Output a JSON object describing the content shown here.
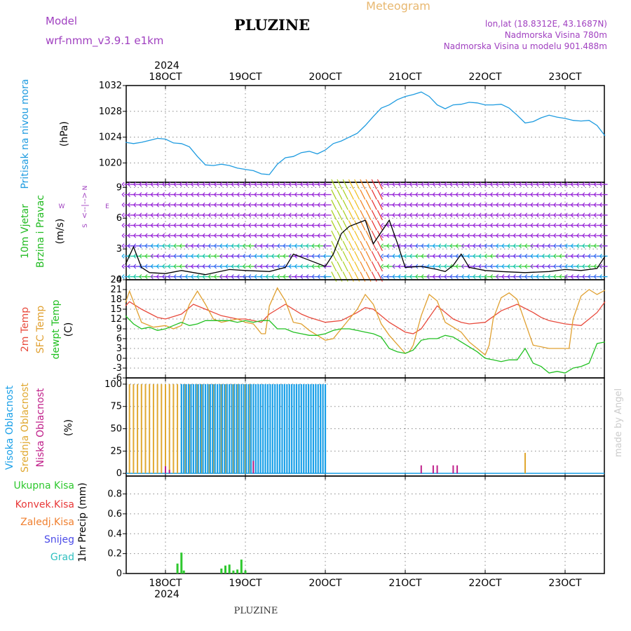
{
  "header": {
    "model_label": "Model",
    "model_name": "wrf-nmm_v3.9.1 e1km",
    "station": "PLUZINE",
    "product": "Meteogram",
    "lonlat": "lon,lat (18.8312E, 43.1687N)",
    "elevation": "Nadmorska Visina 780m",
    "model_elevation": "Nadmorska Visina u modelu 901.488m",
    "watermark": "made by Angel",
    "footer": "PLUZINE"
  },
  "colors": {
    "pressure": "#1e9be0",
    "temp2m": "#e84a3c",
    "sfc": "#e0a030",
    "dew": "#22c022",
    "high": "#1aa0e8",
    "mid": "#e0a830",
    "low": "#c0208a",
    "total": "#2ec82e",
    "conv": "#e83838",
    "frozen": "#f08030",
    "snow": "#4a4ae8",
    "graupel": "#30c0c0",
    "wind_label": "#22bb22",
    "model": "#a040c0",
    "header_gold": "#e8b870",
    "watermark": "#cccccc"
  },
  "chart_data": [
    {
      "type": "line",
      "name": "pressure",
      "ylabel": [
        "Pritisak na nivou mora",
        "(hPa)"
      ],
      "yticks": [
        1020,
        1024,
        1028,
        1032
      ],
      "ylim": [
        1017,
        1032
      ],
      "year": "2024",
      "date_ticks": [
        "18OCT",
        "19OCT",
        "20OCT",
        "21OCT",
        "22OCT",
        "23OCT"
      ],
      "xlim": [
        -0.5,
        5.5
      ],
      "grid": true,
      "series": [
        {
          "x": [
            -0.5,
            -0.4,
            -0.3,
            -0.2,
            -0.1,
            0,
            0.1,
            0.2,
            0.3,
            0.4,
            0.5,
            0.6,
            0.7,
            0.8,
            0.9,
            1,
            1.1,
            1.2,
            1.3,
            1.4,
            1.5,
            1.6,
            1.7,
            1.8,
            1.9,
            2,
            2.1,
            2.2,
            2.3,
            2.4,
            2.5,
            2.6,
            2.7,
            2.8,
            2.9,
            3,
            3.1,
            3.2,
            3.3,
            3.4,
            3.5,
            3.6,
            3.7,
            3.8,
            3.9,
            4,
            4.1,
            4.2,
            4.3,
            4.4,
            4.5,
            4.6,
            4.7,
            4.8,
            4.9,
            5,
            5.1,
            5.2,
            5.3,
            5.4,
            5.5
          ],
          "y": [
            1023.2,
            1023.0,
            1023.2,
            1023.5,
            1023.8,
            1023.7,
            1023.1,
            1023.0,
            1022.5,
            1021.0,
            1019.7,
            1019.6,
            1019.8,
            1019.6,
            1019.2,
            1019.0,
            1018.8,
            1018.3,
            1018.2,
            1019.8,
            1020.8,
            1021.0,
            1021.6,
            1021.8,
            1021.4,
            1022.0,
            1023.0,
            1023.4,
            1024.0,
            1024.6,
            1025.8,
            1027.2,
            1028.5,
            1029.0,
            1029.8,
            1030.3,
            1030.6,
            1031.0,
            1030.3,
            1029.0,
            1028.4,
            1029.0,
            1029.1,
            1029.4,
            1029.3,
            1029.0,
            1029.0,
            1029.1,
            1028.5,
            1027.4,
            1026.2,
            1026.4,
            1027.0,
            1027.4,
            1027.1,
            1026.9,
            1026.6,
            1026.5,
            1026.6,
            1025.8,
            1024.2
          ]
        }
      ]
    },
    {
      "type": "line",
      "name": "wind",
      "ylabel": [
        "10m Vjetar",
        "Brzina i Pravac",
        "(m/s)"
      ],
      "compass": {
        "n": "N",
        "e": "E",
        "w": "W",
        "s": "S",
        "arrows": "<--|-->"
      },
      "yticks": [
        0,
        3,
        6,
        9
      ],
      "ylim": [
        0,
        9.5
      ],
      "xlim": [
        -0.5,
        5.5
      ],
      "grid": true,
      "series": [
        {
          "x": [
            -0.5,
            -0.4,
            -0.3,
            -0.2,
            0,
            0.2,
            0.5,
            0.8,
            1,
            1.3,
            1.5,
            1.6,
            1.8,
            2,
            2.1,
            2.2,
            2.3,
            2.4,
            2.5,
            2.6,
            2.8,
            2.9,
            3,
            3.2,
            3.4,
            3.5,
            3.6,
            3.7,
            3.8,
            4,
            4.2,
            4.5,
            4.8,
            5,
            5.2,
            5.4,
            5.5
          ],
          "y": [
            1.5,
            3.2,
            1.2,
            0.7,
            0.6,
            0.9,
            0.5,
            1.0,
            0.9,
            0.8,
            1.2,
            2.5,
            1.9,
            1.3,
            2.5,
            4.5,
            5.2,
            5.5,
            5.8,
            3.5,
            5.8,
            3.6,
            1.2,
            1.3,
            1.0,
            0.8,
            1.4,
            2.5,
            1.2,
            0.9,
            0.8,
            0.7,
            0.8,
            1.0,
            0.9,
            1.1,
            2.3
          ]
        }
      ]
    },
    {
      "type": "line",
      "name": "temperature",
      "ylabel": [
        "2m Temp",
        "SFC Temp",
        "dewpt Temp",
        "(C)"
      ],
      "yticks": [
        -6,
        -3,
        0,
        3,
        6,
        9,
        12,
        15,
        18,
        21,
        24
      ],
      "ylim": [
        -6,
        24
      ],
      "xlim": [
        -0.5,
        5.5
      ],
      "grid": true,
      "series": [
        {
          "name": "2m Temp",
          "x": [
            -0.5,
            -0.45,
            -0.3,
            -0.1,
            0,
            0.2,
            0.35,
            0.5,
            0.7,
            0.9,
            1,
            1.1,
            1.2,
            1.3,
            1.5,
            1.7,
            1.8,
            2,
            2.2,
            2.4,
            2.5,
            2.6,
            2.8,
            3,
            3.1,
            3.2,
            3.4,
            3.6,
            3.7,
            3.8,
            4,
            4.2,
            4.4,
            4.6,
            4.7,
            4.8,
            5,
            5.2,
            5.4,
            5.5
          ],
          "y": [
            16,
            17.3,
            15,
            12.5,
            12,
            13.5,
            16.5,
            15,
            13,
            12,
            12,
            11.5,
            11,
            13.5,
            16.5,
            13.5,
            12.5,
            11,
            11.5,
            14,
            15.5,
            15,
            11,
            8,
            7.5,
            9,
            16,
            12,
            11,
            10.5,
            11,
            14.5,
            16.5,
            14,
            12.5,
            11.5,
            10.5,
            10,
            14,
            17.3
          ]
        },
        {
          "name": "SFC Temp",
          "x": [
            -0.5,
            -0.45,
            -0.3,
            -0.15,
            0,
            0.1,
            0.2,
            0.3,
            0.4,
            0.5,
            0.6,
            0.7,
            0.8,
            0.9,
            1,
            1.1,
            1.2,
            1.25,
            1.3,
            1.4,
            1.5,
            1.6,
            1.7,
            1.8,
            1.9,
            2,
            2.1,
            2.2,
            2.4,
            2.5,
            2.6,
            2.7,
            2.8,
            3,
            3.05,
            3.1,
            3.2,
            3.3,
            3.4,
            3.5,
            3.6,
            3.7,
            3.8,
            4,
            4.05,
            4.1,
            4.2,
            4.3,
            4.4,
            4.5,
            4.6,
            4.8,
            5,
            5.05,
            5.1,
            5.2,
            5.3,
            5.4,
            5.5
          ],
          "y": [
            17,
            20.5,
            11,
            9.5,
            10,
            9,
            10,
            16.5,
            20.5,
            16.5,
            12,
            11,
            11.5,
            12,
            11,
            10.5,
            7.5,
            7.5,
            16,
            21.5,
            17.5,
            11,
            10.5,
            8.5,
            7,
            5.5,
            6,
            9,
            15,
            19.5,
            16.5,
            10.5,
            7,
            1.5,
            2,
            4,
            13,
            19.5,
            17.5,
            11,
            9.5,
            8,
            5,
            1,
            4,
            12,
            18.5,
            20,
            18,
            11,
            4,
            3,
            3,
            3,
            12,
            19,
            21,
            19.5,
            20.8
          ]
        },
        {
          "name": "dewpt Temp",
          "x": [
            -0.5,
            -0.4,
            -0.3,
            -0.2,
            -0.1,
            0,
            0.1,
            0.2,
            0.3,
            0.4,
            0.5,
            0.6,
            0.7,
            0.8,
            0.9,
            1,
            1.1,
            1.2,
            1.3,
            1.4,
            1.5,
            1.6,
            1.7,
            1.8,
            1.9,
            2,
            2.1,
            2.2,
            2.3,
            2.4,
            2.5,
            2.6,
            2.7,
            2.8,
            2.9,
            3,
            3.1,
            3.2,
            3.3,
            3.4,
            3.5,
            3.6,
            3.7,
            3.8,
            3.9,
            4,
            4.1,
            4.2,
            4.3,
            4.4,
            4.5,
            4.6,
            4.7,
            4.8,
            4.9,
            5,
            5.1,
            5.2,
            5.3,
            5.4,
            5.5
          ],
          "y": [
            13,
            10.5,
            9,
            9.5,
            8.5,
            9,
            10,
            11,
            10,
            10.5,
            11.5,
            11.5,
            11.5,
            11.5,
            11,
            11.5,
            11,
            11.5,
            11.5,
            9,
            9,
            8,
            7.5,
            7,
            7,
            7.5,
            8.5,
            9,
            9,
            8.5,
            8,
            7.5,
            6.5,
            3,
            2,
            1.5,
            2.5,
            5.5,
            6,
            6,
            7,
            6.5,
            5,
            3.5,
            2,
            0,
            -0.5,
            -1,
            -0.5,
            -0.5,
            3,
            -1.5,
            -2.5,
            -4.5,
            -4,
            -4.5,
            -3,
            -2.5,
            -1.5,
            4.5,
            5
          ]
        }
      ]
    },
    {
      "type": "bar",
      "name": "cloud",
      "ylabel": [
        "Visoka Oblacnost",
        "Srednja Oblacnost",
        "Niska Oblacnost",
        "(%)"
      ],
      "yticks": [
        0,
        25,
        50,
        75,
        100
      ],
      "ylim": [
        -3,
        107
      ],
      "xlim": [
        -0.5,
        5.5
      ],
      "grid": true,
      "series": [
        {
          "name": "Visoka Oblacnost",
          "x_start": 0.2,
          "x_end": 2.0,
          "step": 0.03,
          "value": 100
        },
        {
          "name": "Srednja Oblacnost",
          "x_start": -0.45,
          "x_end": 1.1,
          "step": 0.05,
          "value": 100,
          "extra": [
            [
              4.5,
              23
            ]
          ]
        },
        {
          "name": "Niska Oblacnost",
          "points": [
            [
              0.0,
              8
            ],
            [
              0.05,
              4
            ],
            [
              1.1,
              14
            ],
            [
              3.2,
              9
            ],
            [
              3.35,
              9
            ],
            [
              3.4,
              9
            ],
            [
              3.6,
              9
            ],
            [
              3.65,
              9
            ]
          ]
        }
      ]
    },
    {
      "type": "bar",
      "name": "precip",
      "ylabel": [
        "Ukupna Kisa",
        "Konvek.Kisa",
        "Zaledj.Kisa",
        "Snijeg",
        "Grad",
        "1hr Precip (mm)"
      ],
      "yticks": [
        0,
        0.2,
        0.4,
        0.6,
        0.8
      ],
      "ylim": [
        0,
        0.98
      ],
      "xlim": [
        -0.5,
        5.5
      ],
      "grid": true,
      "series": [
        {
          "name": "Ukupna Kisa",
          "x": [
            0.15,
            0.2,
            0.23,
            0.7,
            0.75,
            0.8,
            0.85,
            0.9,
            0.95,
            1.0
          ],
          "values": [
            0.1,
            0.21,
            0.03,
            0.05,
            0.08,
            0.09,
            0.03,
            0.04,
            0.14,
            0.03
          ]
        }
      ]
    }
  ]
}
